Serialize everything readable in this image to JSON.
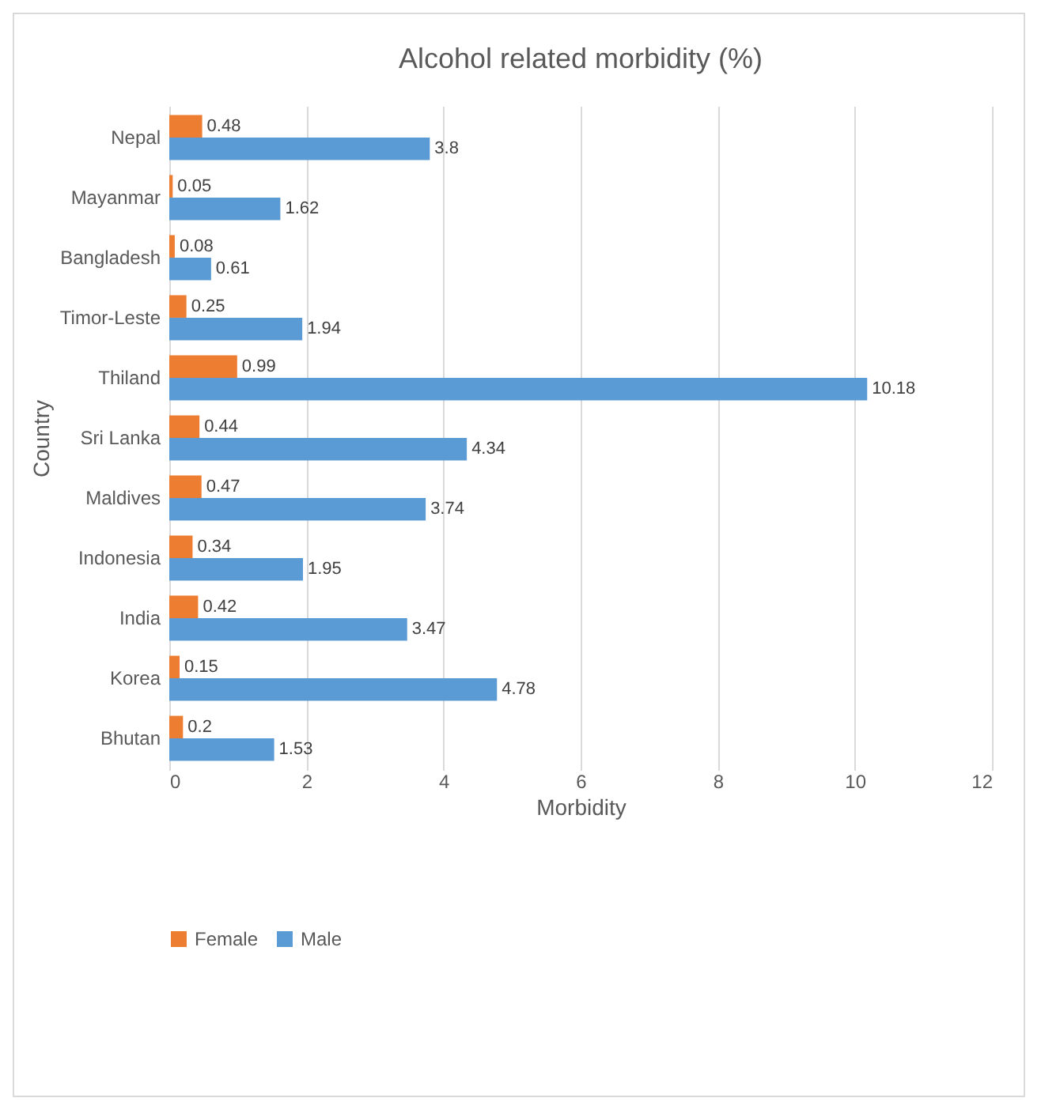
{
  "chart_data": {
    "type": "bar",
    "orientation": "horizontal",
    "title": "Alcohol related morbidity (%)",
    "xlabel": "Morbidity",
    "ylabel": "Country",
    "categories": [
      "Nepal",
      "Mayanmar",
      "Bangladesh",
      "Timor-Leste",
      "Thiland",
      "Sri Lanka",
      "Maldives",
      "Indonesia",
      "India",
      "Korea",
      "Bhutan"
    ],
    "series": [
      {
        "name": "Female",
        "color": "#ed7d31",
        "values": [
          0.48,
          0.05,
          0.08,
          0.25,
          0.99,
          0.44,
          0.47,
          0.34,
          0.42,
          0.15,
          0.2
        ]
      },
      {
        "name": "Male",
        "color": "#5b9bd5",
        "values": [
          3.8,
          1.62,
          0.61,
          1.94,
          10.18,
          4.34,
          3.74,
          1.95,
          3.47,
          4.78,
          1.53
        ]
      }
    ],
    "xlim": [
      0,
      12
    ],
    "xticks": [
      0,
      2,
      4,
      6,
      8,
      10,
      12
    ],
    "grid": "x",
    "legend": "bottom",
    "data_labels": true
  }
}
